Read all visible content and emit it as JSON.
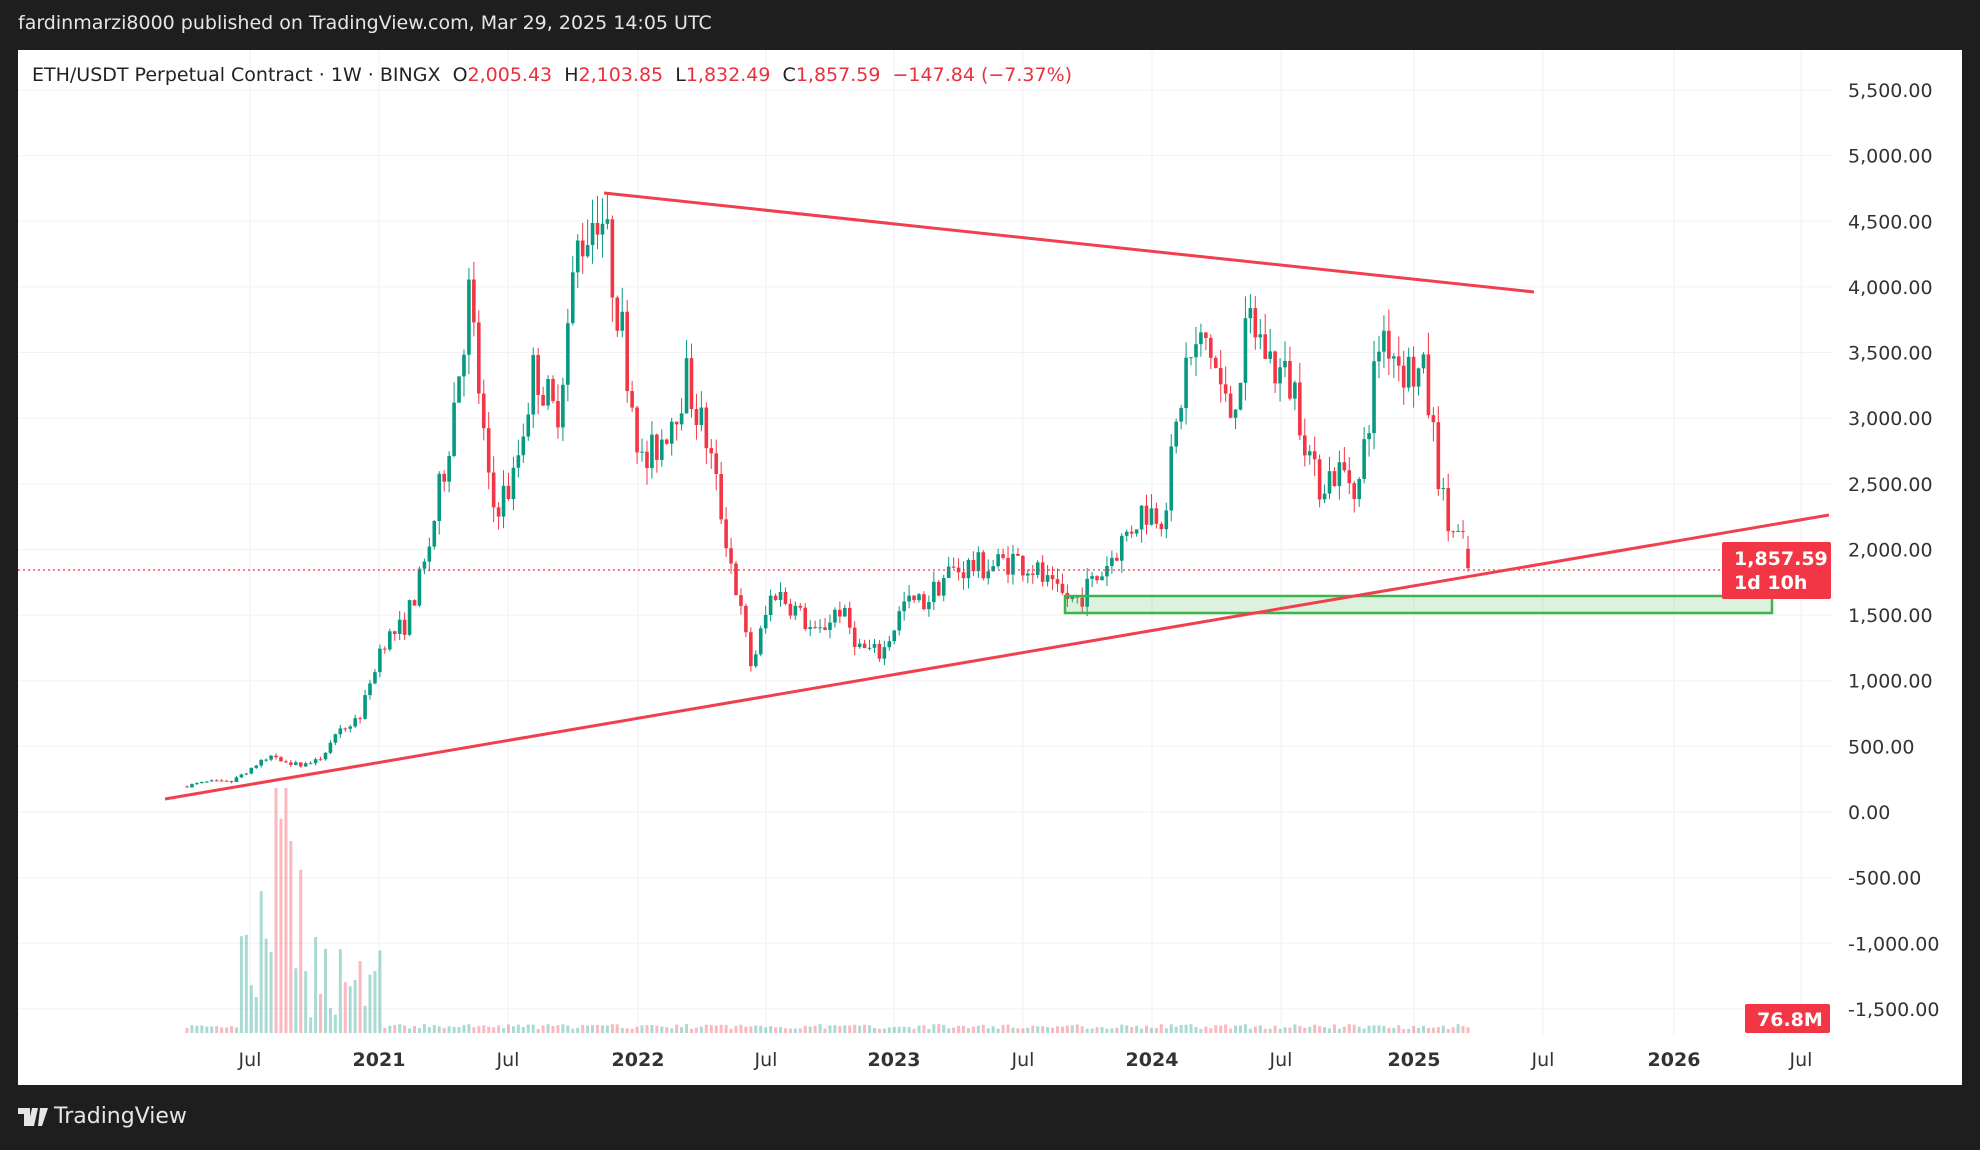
{
  "publish_bar": {
    "text": "fardinmarzi8000 published on TradingView.com, Mar 29, 2025 14:05 UTC"
  },
  "legend": {
    "symbol": "ETH/USDT Perpetual Contract · 1W · BINGX",
    "o_label": "O",
    "o": "2,005.43",
    "h_label": "H",
    "h": "2,103.85",
    "l_label": "L",
    "l": "1,832.49",
    "c_label": "C",
    "c": "1,857.59",
    "change": "−147.84 (−7.37%)"
  },
  "price_axis": [
    "5,500.00",
    "5,000.00",
    "4,500.00",
    "4,000.00",
    "3,500.00",
    "3,000.00",
    "2,500.00",
    "2,000.00",
    "1,500.00",
    "1,000.00",
    "500.00",
    "0.00",
    "-500.00",
    "-1,000.00",
    "-1,500.00"
  ],
  "time_axis": [
    "Jul",
    "2021",
    "Jul",
    "2022",
    "Jul",
    "2023",
    "Jul",
    "2024",
    "Jul",
    "2025",
    "Jul",
    "2026",
    "Jul"
  ],
  "last_price_label": {
    "price": "1,857.59",
    "countdown": "1d 10h"
  },
  "volume_label": "76.8M",
  "footer": {
    "brand": "TradingView"
  },
  "colors": {
    "up": "#089981",
    "down": "#f23645",
    "trendline": "#f0404f",
    "zone": "#3bb54a"
  },
  "chart_data": {
    "type": "candlestick",
    "title": "ETH/USDT Perpetual Contract · 1W · BINGX",
    "interval": "1W",
    "start": "Apr 2020",
    "monthly_closes": [
      200,
      230,
      225,
      340,
      430,
      360,
      385,
      600,
      740,
      1300,
      1420,
      1900,
      2770,
      3950,
      2300,
      2500,
      3400,
      3000,
      4300,
      4650,
      3700,
      2600,
      2900,
      3300,
      2800,
      1950,
      1100,
      1700,
      1550,
      1330,
      1570,
      1250,
      1200,
      1580,
      1600,
      1820,
      1870,
      1870,
      1930,
      1860,
      1650,
      1620,
      1800,
      2050,
      2300,
      2280,
      3400,
      3600,
      3000,
      3750,
      3400,
      3230,
      2500,
      2600,
      2500,
      3700,
      3400,
      3300,
      2200,
      1990
    ],
    "last_candle": {
      "open": 2005.43,
      "high": 2103.85,
      "low": 1832.49,
      "close": 1857.59,
      "change": -147.84,
      "change_pct": -7.37
    },
    "ylim": [
      -1500,
      5500
    ],
    "annotations": [
      {
        "type": "trendline",
        "name": "descending-resistance",
        "from": [
          "Nov 2021",
          4720
        ],
        "to": [
          "Jun 2025",
          3970
        ]
      },
      {
        "type": "trendline",
        "name": "ascending-support",
        "from": [
          "Mar 2020",
          100
        ],
        "to": [
          "Jun 2026",
          2250
        ]
      },
      {
        "type": "zone",
        "name": "support-zone",
        "from": "Sep 2023",
        "to": "Apr 2026",
        "price_range": [
          1530,
          1660
        ]
      }
    ]
  }
}
